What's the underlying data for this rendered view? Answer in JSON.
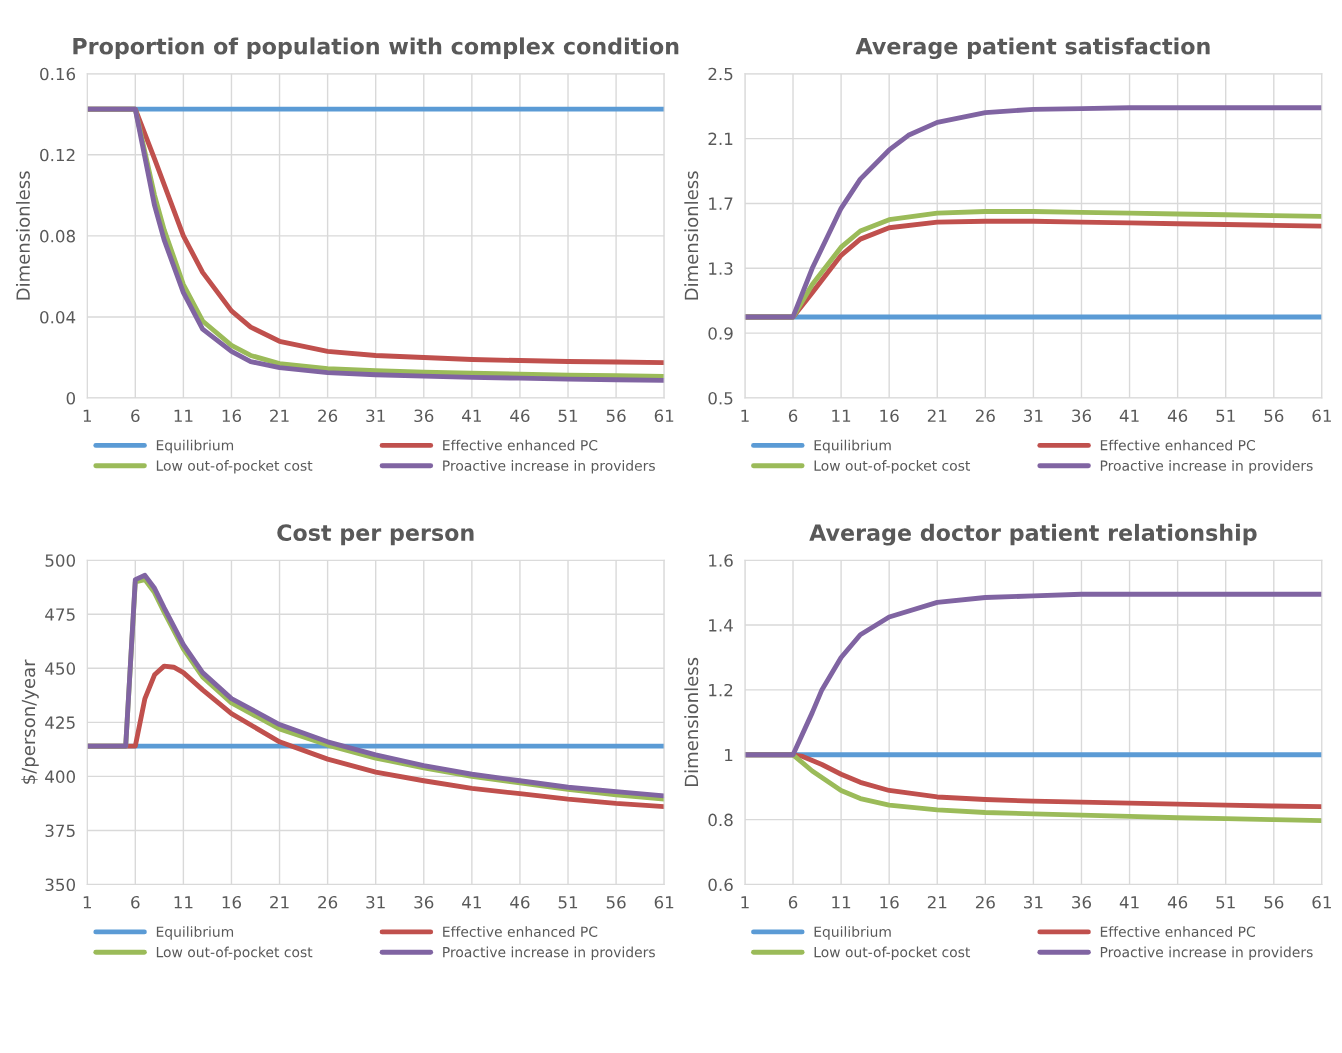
{
  "chart_data": [
    {
      "type": "line",
      "title": "Proportion of population with complex condition",
      "ylabel": "Dimensionless",
      "xlim": [
        1,
        61
      ],
      "xticks": [
        1,
        6,
        11,
        16,
        21,
        26,
        31,
        36,
        41,
        46,
        51,
        56,
        61
      ],
      "ylim": [
        0,
        0.16
      ],
      "yticks": [
        0,
        0.04,
        0.08,
        0.12,
        0.16
      ],
      "grid": true,
      "legend": "bottom",
      "series": [
        {
          "name": "Equilibrium",
          "color": "#5b9bd5",
          "x": [
            1,
            61
          ],
          "values": [
            0.1425,
            0.1425
          ]
        },
        {
          "name": "Effective enhanced PC",
          "color": "#c0504d",
          "x": [
            1,
            6,
            8,
            11,
            13,
            16,
            18,
            21,
            26,
            31,
            36,
            41,
            46,
            51,
            56,
            61
          ],
          "values": [
            0.1425,
            0.1425,
            0.118,
            0.08,
            0.062,
            0.043,
            0.035,
            0.028,
            0.023,
            0.021,
            0.02,
            0.019,
            0.0185,
            0.018,
            0.0178,
            0.0175
          ]
        },
        {
          "name": "Low out-of-pocket cost",
          "color": "#9bbb59",
          "x": [
            1,
            6,
            8,
            9,
            11,
            13,
            16,
            18,
            21,
            26,
            31,
            36,
            41,
            46,
            51,
            56,
            61
          ],
          "values": [
            0.1425,
            0.1425,
            0.1,
            0.083,
            0.056,
            0.038,
            0.026,
            0.021,
            0.017,
            0.0145,
            0.0135,
            0.0128,
            0.0122,
            0.0118,
            0.0113,
            0.011,
            0.0107
          ]
        },
        {
          "name": "Proactive increase in providers",
          "color": "#8064a2",
          "x": [
            1,
            6,
            8,
            9,
            11,
            13,
            16,
            18,
            21,
            26,
            31,
            36,
            41,
            46,
            51,
            56,
            61
          ],
          "values": [
            0.1425,
            0.1425,
            0.095,
            0.078,
            0.052,
            0.034,
            0.023,
            0.018,
            0.015,
            0.0125,
            0.0115,
            0.0108,
            0.0102,
            0.0098,
            0.0093,
            0.009,
            0.0087
          ]
        }
      ]
    },
    {
      "type": "line",
      "title": "Average patient satisfaction",
      "ylabel": "Dimensionless",
      "xlim": [
        1,
        61
      ],
      "xticks": [
        1,
        6,
        11,
        16,
        21,
        26,
        31,
        36,
        41,
        46,
        51,
        56,
        61
      ],
      "ylim": [
        0.5,
        2.5
      ],
      "yticks": [
        0.5,
        0.9,
        1.3,
        1.7,
        2.1,
        2.5
      ],
      "grid": true,
      "legend": "bottom",
      "series": [
        {
          "name": "Equilibrium",
          "color": "#5b9bd5",
          "x": [
            1,
            61
          ],
          "values": [
            1.0,
            1.0
          ]
        },
        {
          "name": "Effective enhanced PC",
          "color": "#c0504d",
          "x": [
            1,
            6,
            8,
            11,
            13,
            16,
            21,
            26,
            31,
            36,
            41,
            46,
            51,
            56,
            61
          ],
          "values": [
            1.0,
            1.0,
            1.15,
            1.38,
            1.48,
            1.55,
            1.585,
            1.59,
            1.59,
            1.585,
            1.58,
            1.575,
            1.57,
            1.565,
            1.56
          ]
        },
        {
          "name": "Low out-of-pocket cost",
          "color": "#9bbb59",
          "x": [
            1,
            6,
            8,
            11,
            13,
            16,
            21,
            26,
            31,
            36,
            41,
            46,
            51,
            56,
            61
          ],
          "values": [
            1.0,
            1.0,
            1.2,
            1.43,
            1.53,
            1.6,
            1.64,
            1.65,
            1.65,
            1.645,
            1.64,
            1.635,
            1.63,
            1.625,
            1.62
          ]
        },
        {
          "name": "Proactive increase in providers",
          "color": "#8064a2",
          "x": [
            1,
            6,
            8,
            11,
            13,
            16,
            18,
            21,
            26,
            31,
            36,
            41,
            46,
            51,
            56,
            61
          ],
          "values": [
            1.0,
            1.0,
            1.3,
            1.67,
            1.85,
            2.03,
            2.12,
            2.2,
            2.26,
            2.28,
            2.285,
            2.29,
            2.29,
            2.29,
            2.29,
            2.29
          ]
        }
      ]
    },
    {
      "type": "line",
      "title": "Cost per person",
      "ylabel": "$/person/year",
      "xlim": [
        1,
        61
      ],
      "xticks": [
        1,
        6,
        11,
        16,
        21,
        26,
        31,
        36,
        41,
        46,
        51,
        56,
        61
      ],
      "ylim": [
        350,
        500
      ],
      "yticks": [
        350,
        375,
        400,
        425,
        450,
        475,
        500
      ],
      "grid": true,
      "legend": "bottom",
      "series": [
        {
          "name": "Equilibrium",
          "color": "#5b9bd5",
          "x": [
            1,
            61
          ],
          "values": [
            414,
            414
          ]
        },
        {
          "name": "Effective enhanced PC",
          "color": "#c0504d",
          "x": [
            1,
            6,
            7,
            8,
            9,
            10,
            11,
            13,
            16,
            21,
            26,
            31,
            36,
            41,
            46,
            51,
            56,
            61
          ],
          "values": [
            414,
            414,
            436,
            447,
            451,
            450.5,
            448,
            440,
            429,
            416,
            408,
            402,
            398,
            394.5,
            392,
            389.5,
            387.5,
            386
          ]
        },
        {
          "name": "Low out-of-pocket cost",
          "color": "#9bbb59",
          "x": [
            1,
            5,
            6,
            7,
            8,
            9,
            11,
            13,
            16,
            21,
            26,
            31,
            36,
            41,
            46,
            51,
            56,
            61
          ],
          "values": [
            414,
            414,
            490,
            491,
            485,
            476,
            459,
            446,
            434,
            422,
            414.5,
            408.5,
            404,
            400,
            397,
            394,
            391.5,
            389.5
          ]
        },
        {
          "name": "Proactive increase in providers",
          "color": "#8064a2",
          "x": [
            1,
            5,
            6,
            7,
            8,
            9,
            11,
            13,
            16,
            21,
            26,
            31,
            36,
            41,
            46,
            51,
            56,
            61
          ],
          "values": [
            414,
            414,
            491,
            493,
            487,
            478,
            461,
            448,
            436,
            424,
            416,
            410,
            405,
            401,
            398,
            395,
            393,
            391
          ]
        }
      ]
    },
    {
      "type": "line",
      "title": "Average doctor patient relationship",
      "ylabel": "Dimensionless",
      "xlim": [
        1,
        61
      ],
      "xticks": [
        1,
        6,
        11,
        16,
        21,
        26,
        31,
        36,
        41,
        46,
        51,
        56,
        61
      ],
      "ylim": [
        0.6,
        1.6
      ],
      "yticks": [
        0.6,
        0.8,
        1,
        1.2,
        1.4,
        1.6
      ],
      "grid": true,
      "legend": "bottom",
      "series": [
        {
          "name": "Equilibrium",
          "color": "#5b9bd5",
          "x": [
            1,
            61
          ],
          "values": [
            1.0,
            1.0
          ]
        },
        {
          "name": "Effective enhanced PC",
          "color": "#c0504d",
          "x": [
            1,
            6,
            7,
            9,
            11,
            13,
            16,
            21,
            26,
            31,
            36,
            41,
            46,
            51,
            56,
            61
          ],
          "values": [
            1.0,
            1.0,
            0.995,
            0.97,
            0.94,
            0.915,
            0.89,
            0.87,
            0.862,
            0.857,
            0.854,
            0.851,
            0.848,
            0.845,
            0.842,
            0.84
          ]
        },
        {
          "name": "Low out-of-pocket cost",
          "color": "#9bbb59",
          "x": [
            1,
            6,
            8,
            11,
            13,
            16,
            21,
            26,
            31,
            36,
            41,
            46,
            51,
            56,
            61
          ],
          "values": [
            1.0,
            1.0,
            0.95,
            0.89,
            0.865,
            0.845,
            0.83,
            0.822,
            0.818,
            0.814,
            0.81,
            0.806,
            0.803,
            0.8,
            0.797
          ]
        },
        {
          "name": "Proactive increase in providers",
          "color": "#8064a2",
          "x": [
            1,
            6,
            8,
            9,
            11,
            13,
            16,
            21,
            26,
            31,
            36,
            41,
            46,
            51,
            56,
            61
          ],
          "values": [
            1.0,
            1.0,
            1.13,
            1.2,
            1.3,
            1.37,
            1.425,
            1.47,
            1.485,
            1.49,
            1.495,
            1.495,
            1.495,
            1.495,
            1.495,
            1.495
          ]
        }
      ]
    }
  ]
}
